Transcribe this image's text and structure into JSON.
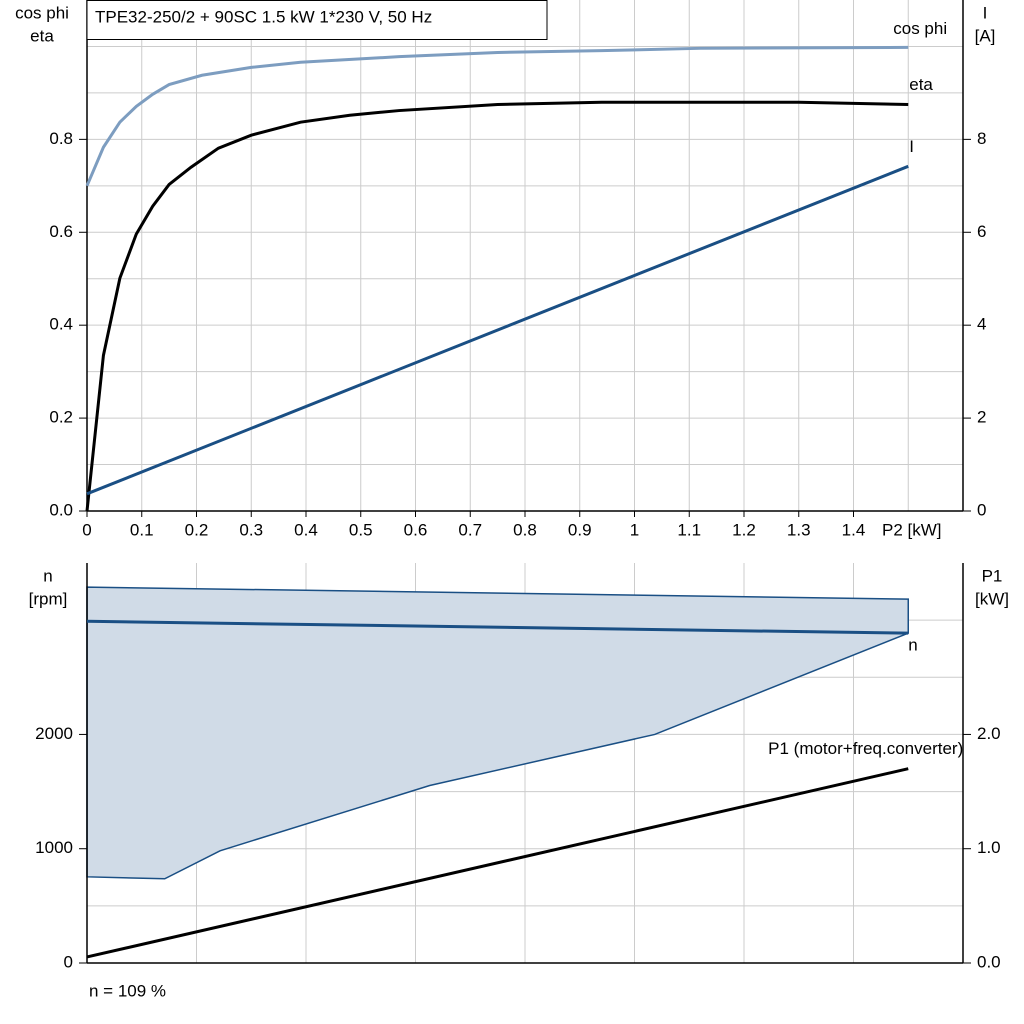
{
  "chart_data": [
    {
      "type": "line",
      "title": "TPE32-250/2 + 90SC   1.5 kW   1*230 V, 50 Hz",
      "xlabel": "P2 [kW]",
      "ylabel": [
        "cos phi",
        "eta"
      ],
      "y2label": [
        "I",
        "[A]"
      ],
      "xlim": [
        0,
        1.6
      ],
      "xticks": [
        0,
        0.1,
        0.2,
        0.3,
        0.4,
        0.5,
        0.6,
        0.7,
        0.8,
        0.9,
        1.0,
        1.1,
        1.2,
        1.3,
        1.4
      ],
      "xgrid": [
        0.1,
        0.2,
        0.3,
        0.4,
        0.5,
        0.6,
        0.7,
        0.8,
        0.9,
        1.0,
        1.1,
        1.2,
        1.3,
        1.4,
        1.5
      ],
      "ylim": [
        0,
        1.1
      ],
      "yticks": [
        {
          "value": 0,
          "label": "0.0"
        },
        0.2,
        0.4,
        0.6,
        0.8
      ],
      "ygrid": [
        0.1,
        0.2,
        0.3,
        0.4,
        0.5,
        0.6,
        0.7,
        0.8,
        0.9,
        1.0
      ],
      "y2lim": [
        0,
        11
      ],
      "y2ticks": [
        0,
        2,
        4,
        6,
        8
      ],
      "series": [
        {
          "name": "cos phi",
          "color": "#7d9dc0",
          "x": [
            0,
            0.03,
            0.06,
            0.09,
            0.12,
            0.15,
            0.21,
            0.3,
            0.39,
            0.57,
            0.75,
            0.94,
            1.12,
            1.5
          ],
          "values": [
            0.7,
            0.783,
            0.837,
            0.871,
            0.897,
            0.918,
            0.938,
            0.955,
            0.966,
            0.978,
            0.987,
            0.991,
            0.996,
            0.998
          ]
        },
        {
          "name": "eta",
          "color": "#000000",
          "x": [
            0,
            0.03,
            0.06,
            0.09,
            0.12,
            0.15,
            0.19,
            0.24,
            0.3,
            0.39,
            0.48,
            0.57,
            0.75,
            0.94,
            1.3,
            1.5
          ],
          "values": [
            0,
            0.335,
            0.501,
            0.596,
            0.656,
            0.703,
            0.74,
            0.781,
            0.809,
            0.837,
            0.852,
            0.862,
            0.875,
            0.88,
            0.88,
            0.875
          ]
        },
        {
          "name": "I",
          "color": "#1a4f84",
          "axis": "y2",
          "x": [
            0,
            1.5
          ],
          "values": [
            0.37,
            7.42
          ]
        }
      ]
    },
    {
      "type": "line",
      "ylabel": [
        "n",
        "[rpm]"
      ],
      "y2label": [
        "P1",
        "[kW]"
      ],
      "xlim": [
        0,
        1.6
      ],
      "xgrid": [
        0.2,
        0.4,
        0.6,
        0.8,
        1.0,
        1.2,
        1.4
      ],
      "ylim": [
        0,
        3500
      ],
      "yticks": [
        0,
        1000,
        2000
      ],
      "ygrid": [
        500,
        1000,
        1500,
        2000,
        2500,
        3000
      ],
      "y2lim": [
        0,
        3.5
      ],
      "y2ticks": [
        {
          "value": 0,
          "label": "0.0"
        },
        {
          "value": 1,
          "label": "1.0"
        },
        {
          "value": 2,
          "label": "2.0"
        }
      ],
      "area": {
        "color": "#d0dbe7",
        "edge": "#1a4f84",
        "x": [
          0,
          1.5,
          1.5,
          1.037,
          0.626,
          0.243,
          0.142,
          0
        ],
        "values": [
          3289,
          3184,
          2886,
          2000,
          1553,
          982,
          737,
          754
        ]
      },
      "series": [
        {
          "name": "n",
          "color": "#1a4f84",
          "x": [
            0,
            1.5
          ],
          "values": [
            2990,
            2886
          ]
        },
        {
          "name": "P1 (motor+freq.converter)",
          "color": "#000000",
          "axis": "y2",
          "x": [
            0,
            1.5
          ],
          "values": [
            0.053,
            1.7
          ]
        }
      ],
      "footnote": "n = 109 %"
    }
  ]
}
